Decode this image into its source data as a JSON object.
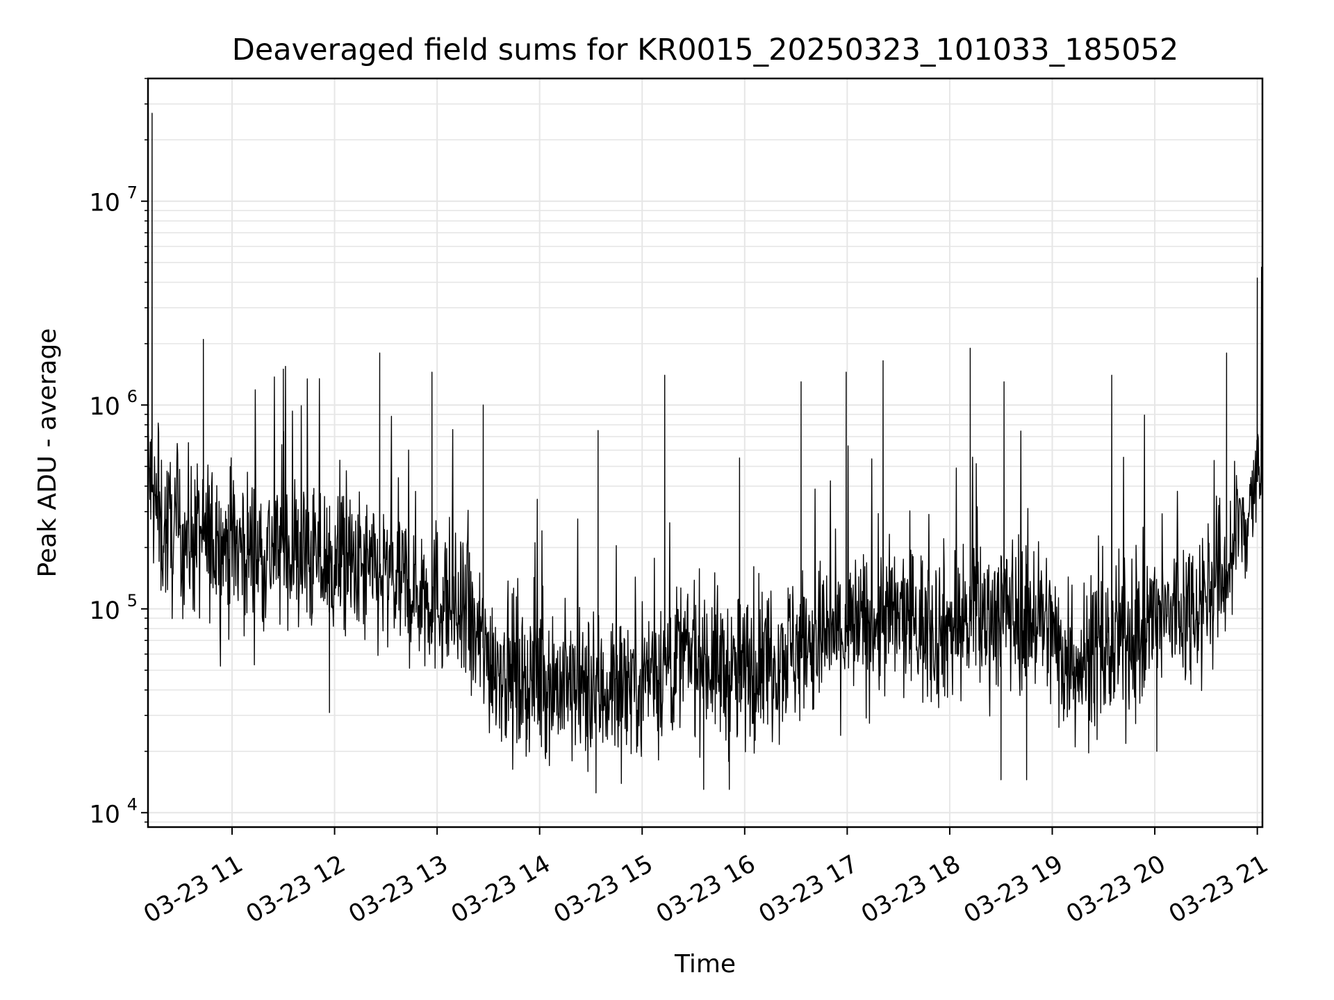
{
  "chart_data": {
    "type": "line",
    "title": "Deaveraged field sums for KR0015_20250323_101033_185052",
    "xlabel": "Time",
    "ylabel": "Peak ADU - average",
    "x_tick_labels": [
      "03-23 11",
      "03-23 12",
      "03-23 13",
      "03-23 14",
      "03-23 15",
      "03-23 16",
      "03-23 17",
      "03-23 18",
      "03-23 19",
      "03-23 20",
      "03-23 21"
    ],
    "x_ticks_hours": [
      11,
      12,
      13,
      14,
      15,
      16,
      17,
      18,
      19,
      20,
      21
    ],
    "x_range_hours": [
      10.18,
      21.05
    ],
    "y_scale": "log",
    "y_tick_values": [
      10000,
      100000,
      1000000,
      10000000
    ],
    "y_tick_labels": [
      {
        "base": "10",
        "exp": "4"
      },
      {
        "base": "10",
        "exp": "5"
      },
      {
        "base": "10",
        "exp": "6"
      },
      {
        "base": "10",
        "exp": "7"
      }
    ],
    "ylim": [
      8500,
      40000000
    ],
    "grid": true,
    "line_color": "#000000",
    "grid_color": "#e6e6e6",
    "series": [
      {
        "x": [
          10.18,
          10.23,
          10.3,
          10.5,
          10.7,
          10.9,
          11.1,
          11.3,
          11.5,
          11.7,
          11.9,
          12.1,
          12.3,
          12.5,
          12.7,
          12.9,
          13.1,
          13.3,
          13.5,
          13.7,
          13.9,
          14.1,
          14.3,
          14.5,
          14.7,
          14.9,
          15.1,
          15.3,
          15.5,
          15.7,
          15.9,
          16.1,
          16.3,
          16.5,
          16.7,
          16.9,
          17.1,
          17.3,
          17.5,
          17.7,
          17.9,
          18.1,
          18.3,
          18.5,
          18.7,
          18.9,
          19.1,
          19.3,
          19.5,
          19.7,
          19.9,
          20.1,
          20.3,
          20.5,
          20.7,
          20.9,
          21.05
        ],
        "y": [
          500000,
          350000,
          250000,
          230000,
          220000,
          210000,
          200000,
          190000,
          200000,
          180000,
          170000,
          160000,
          150000,
          140000,
          130000,
          120000,
          110000,
          80000,
          60000,
          50000,
          45000,
          45000,
          40000,
          38000,
          42000,
          45000,
          50000,
          55000,
          60000,
          55000,
          45000,
          55000,
          60000,
          65000,
          70000,
          75000,
          80000,
          85000,
          90000,
          85000,
          80000,
          85000,
          90000,
          100000,
          95000,
          90000,
          60000,
          55000,
          60000,
          70000,
          80000,
          90000,
          100000,
          120000,
          150000,
          300000,
          500000
        ],
        "spikes": [
          {
            "x": 10.22,
            "y": 27000000
          },
          {
            "x": 10.72,
            "y": 2100000
          },
          {
            "x": 11.5,
            "y": 1500000
          },
          {
            "x": 12.44,
            "y": 1800000
          },
          {
            "x": 12.95,
            "y": 1450000
          },
          {
            "x": 13.45,
            "y": 1000000
          },
          {
            "x": 14.57,
            "y": 750000
          },
          {
            "x": 15.22,
            "y": 1400000
          },
          {
            "x": 15.95,
            "y": 550000
          },
          {
            "x": 16.55,
            "y": 1300000
          },
          {
            "x": 16.99,
            "y": 1450000
          },
          {
            "x": 17.35,
            "y": 1650000
          },
          {
            "x": 18.2,
            "y": 1900000
          },
          {
            "x": 18.53,
            "y": 1300000
          },
          {
            "x": 19.58,
            "y": 1400000
          },
          {
            "x": 20.7,
            "y": 1800000
          },
          {
            "x": 21.0,
            "y": 4200000
          }
        ],
        "dips": [
          {
            "x": 11.95,
            "y": 31000
          },
          {
            "x": 14.55,
            "y": 12500
          },
          {
            "x": 15.6,
            "y": 13000
          },
          {
            "x": 15.85,
            "y": 13000
          },
          {
            "x": 18.5,
            "y": 14500
          },
          {
            "x": 18.75,
            "y": 14500
          },
          {
            "x": 20.02,
            "y": 20000
          }
        ]
      }
    ]
  }
}
